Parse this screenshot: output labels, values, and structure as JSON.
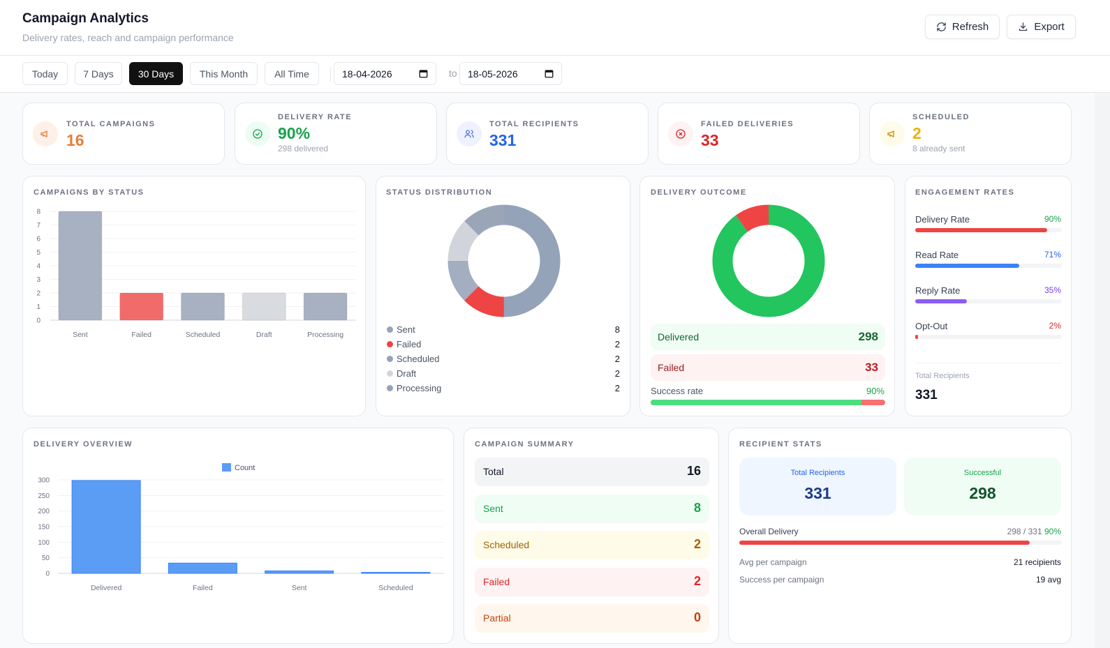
{
  "header": {
    "title": "Campaign Analytics",
    "subtitle": "Delivery rates, reach and campaign performance",
    "refresh_label": "Refresh",
    "export_label": "Export"
  },
  "filters": {
    "ranges": [
      "Today",
      "7 Days",
      "30 Days",
      "This Month",
      "All Time"
    ],
    "active": "30 Days",
    "date_from": "18-04-2026",
    "to_label": "to",
    "date_to": "18-05-2026"
  },
  "stats": [
    {
      "label": "Total Campaigns",
      "value": "16",
      "sub": "",
      "color": "#e67e3a",
      "icon": "megaphone-icon"
    },
    {
      "label": "Delivery Rate",
      "value": "90%",
      "sub": "298 delivered",
      "color": "#16a34a",
      "icon": "check-circle-icon"
    },
    {
      "label": "Total Recipients",
      "value": "331",
      "sub": "",
      "color": "#2563eb",
      "icon": "users-icon"
    },
    {
      "label": "Failed Deliveries",
      "value": "33",
      "sub": "",
      "color": "#dc2626",
      "icon": "x-circle-icon"
    },
    {
      "label": "Scheduled",
      "value": "2",
      "sub": "8 already sent",
      "color": "#eab308",
      "icon": "megaphone-icon"
    }
  ],
  "campaigns_by_status": {
    "title": "Campaigns by Status"
  },
  "status_distribution": {
    "title": "Status Distribution",
    "legend": [
      {
        "label": "Sent",
        "value": "8",
        "color": "#94a3b8"
      },
      {
        "label": "Failed",
        "value": "2",
        "color": "#ef4444"
      },
      {
        "label": "Scheduled",
        "value": "2",
        "color": "#94a3b8"
      },
      {
        "label": "Draft",
        "value": "2",
        "color": "#d1d5db"
      },
      {
        "label": "Processing",
        "value": "2",
        "color": "#94a3b8"
      }
    ]
  },
  "delivery_outcome": {
    "title": "Delivery Outcome",
    "delivered_label": "Delivered",
    "delivered_value": "298",
    "failed_label": "Failed",
    "failed_value": "33",
    "success_label": "Success rate",
    "success_value": "90%",
    "success_fraction": 0.9
  },
  "engagement": {
    "title": "Engagement Rates",
    "rates": [
      {
        "label": "Delivery Rate",
        "pct": "90%",
        "fraction": 0.9,
        "color": "#ef4444",
        "pct_color": "#16a34a"
      },
      {
        "label": "Read Rate",
        "pct": "71%",
        "fraction": 0.71,
        "color": "#3b82f6",
        "pct_color": "#2563eb"
      },
      {
        "label": "Reply Rate",
        "pct": "35%",
        "fraction": 0.35,
        "color": "#8b5cf6",
        "pct_color": "#7c3aed"
      },
      {
        "label": "Opt-Out",
        "pct": "2%",
        "fraction": 0.02,
        "color": "#ef4444",
        "pct_color": "#dc2626"
      }
    ],
    "total_label": "Total Recipients",
    "total_value": "331"
  },
  "delivery_overview": {
    "title": "Delivery Overview"
  },
  "campaign_summary": {
    "title": "Campaign Summary",
    "rows": [
      {
        "label": "Total",
        "value": "16",
        "bg": "#f3f4f6",
        "color": "#111827"
      },
      {
        "label": "Sent",
        "value": "8",
        "bg": "#f0fdf4",
        "color": "#16a34a"
      },
      {
        "label": "Scheduled",
        "value": "2",
        "bg": "#fefce8",
        "color": "#a16207"
      },
      {
        "label": "Failed",
        "value": "2",
        "bg": "#fef2f2",
        "color": "#dc2626"
      },
      {
        "label": "Partial",
        "value": "0",
        "bg": "#fff7ed",
        "color": "#c2410c"
      }
    ]
  },
  "recipient_stats": {
    "title": "Recipient Stats",
    "total_label": "Total Recipients",
    "total_value": "331",
    "success_label": "Successful",
    "success_value": "298",
    "overall_label": "Overall Delivery",
    "overall_ratio": "298 / 331",
    "overall_pct": "90%",
    "overall_fraction": 0.9,
    "avg_label": "Avg per campaign",
    "avg_value": "21 recipients",
    "success_per_label": "Success per campaign",
    "success_per_value": "19 avg"
  },
  "chart_data": [
    {
      "type": "bar",
      "title": "Campaigns by Status",
      "categories": [
        "Sent",
        "Failed",
        "Scheduled",
        "Draft",
        "Processing"
      ],
      "values": [
        8,
        2,
        2,
        2,
        2
      ],
      "colors": [
        "#a7b1c2",
        "#f26b6b",
        "#a7b1c2",
        "#d8dbe0",
        "#a7b1c2"
      ],
      "yticks": [
        "0",
        "1",
        "2",
        "3",
        "4",
        "5",
        "6",
        "7",
        "8"
      ],
      "ylim": [
        0,
        8
      ],
      "grid": true
    },
    {
      "type": "pie",
      "title": "Status Distribution",
      "labels": [
        "Sent",
        "Failed",
        "Scheduled",
        "Draft",
        "Processing"
      ],
      "values": [
        8,
        2,
        2,
        2,
        2
      ],
      "colors": [
        "#94a3b8",
        "#ef4444",
        "#94a3b8",
        "#d1d5db",
        "#94a3b8"
      ]
    },
    {
      "type": "pie",
      "title": "Delivery Outcome",
      "labels": [
        "Delivered",
        "Failed"
      ],
      "values": [
        298,
        33
      ],
      "colors": [
        "#22c55e",
        "#ef4444"
      ]
    },
    {
      "type": "bar",
      "title": "Delivery Overview",
      "categories": [
        "Delivered",
        "Failed",
        "Sent",
        "Scheduled"
      ],
      "series": [
        {
          "name": "Count",
          "values": [
            298,
            33,
            8,
            2
          ]
        }
      ],
      "color": "#5b9cf5",
      "yticks": [
        "0",
        "50",
        "100",
        "150",
        "200",
        "250",
        "300"
      ],
      "ylim": [
        0,
        300
      ],
      "legend": "top",
      "grid": true
    }
  ]
}
